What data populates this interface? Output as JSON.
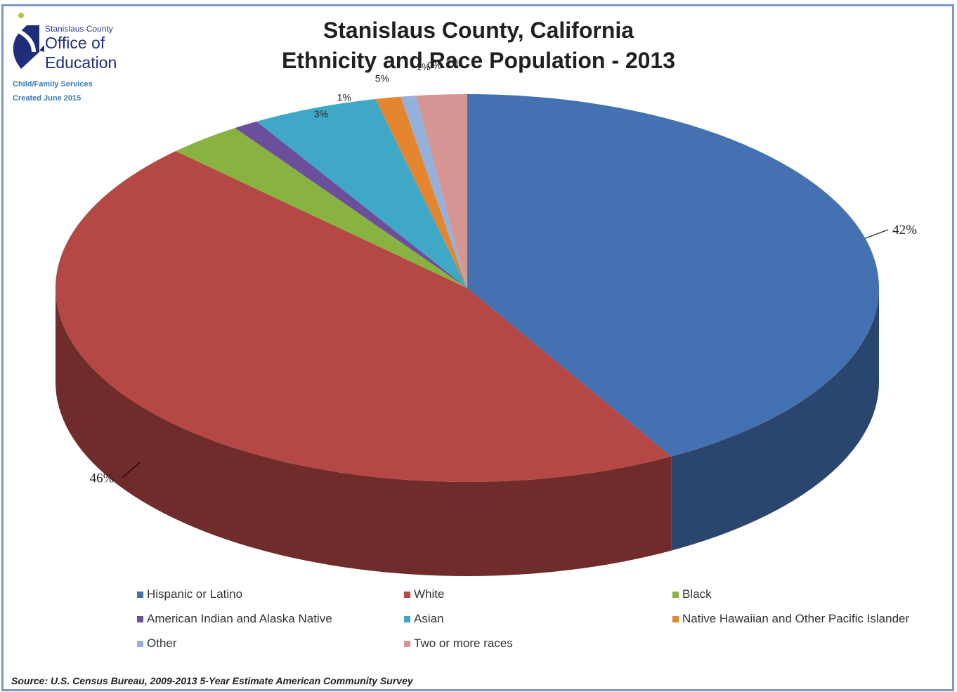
{
  "logo": {
    "org_small": "Stanislaus County",
    "org_line1": "Office of",
    "org_line2": "Education",
    "dept": "Child/Family Services",
    "created": "Created June 2015"
  },
  "colors": {
    "hispanic": "#4371b1",
    "white": "#b54744",
    "black": "#89b341",
    "american_indian": "#6b4f9a",
    "asian": "#3fa8c6",
    "native_hawaiian": "#e4862f",
    "other": "#93b1da",
    "two_or_more": "#d59693",
    "frame": "#7b98c9"
  },
  "source": "Source: U.S. Census Bureau, 2009-2013 5-Year Estimate American Community Survey",
  "chart_data": {
    "type": "pie",
    "title_line1": "Stanislaus County, California",
    "title_line2": "Ethnicity and Race Population - 2013",
    "legend_placement": "bottom",
    "slices": [
      {
        "label": "Hispanic or Latino",
        "value": 42,
        "data_label": "42%",
        "color": "#4371b1"
      },
      {
        "label": "White",
        "value": 46,
        "data_label": "46%",
        "color": "#b54744"
      },
      {
        "label": "Black",
        "value": 3,
        "data_label": "3%",
        "color": "#89b341"
      },
      {
        "label": "American Indian and Alaska Native",
        "value": 1,
        "data_label": "1%",
        "color": "#6b4f9a"
      },
      {
        "label": "Asian",
        "value": 5,
        "data_label": "5%",
        "color": "#3fa8c6"
      },
      {
        "label": "Native Hawaiian and Other Pacific Islander",
        "value": 1,
        "data_label": "1%",
        "color": "#e4862f"
      },
      {
        "label": "Other",
        "value": 0,
        "data_label": "0%",
        "color": "#93b1da"
      },
      {
        "label": "Two or more races",
        "value": 2,
        "data_label": "2%",
        "color": "#d59693"
      }
    ]
  }
}
